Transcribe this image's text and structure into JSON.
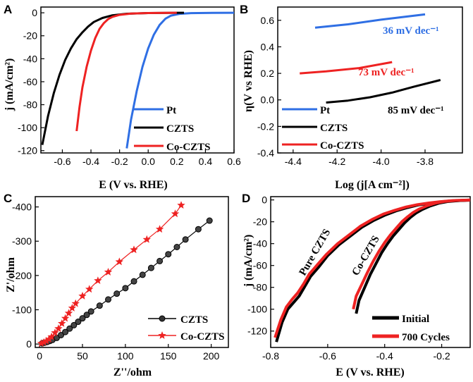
{
  "colors": {
    "blue": "#2f6fe4",
    "black": "#000000",
    "red": "#ee2222"
  },
  "chart_data": [
    {
      "panel": "A",
      "type": "line",
      "xlabel": "E (V vs. RHE)",
      "ylabel": "j (mA/cm²)",
      "xlim": [
        -0.75,
        0.6
      ],
      "ylim": [
        -122,
        5
      ],
      "xticks": [
        -0.6,
        -0.4,
        -0.2,
        0.0,
        0.2,
        0.4,
        0.6
      ],
      "xtick_labels": [
        "-0.6",
        "-0.4",
        "-0.2",
        "0.0",
        "0.2",
        "0.4",
        "0.6"
      ],
      "yticks": [
        0,
        -20,
        -40,
        -60,
        -80,
        -100,
        -120
      ],
      "ytick_labels": [
        "0",
        "-20",
        "-40",
        "-60",
        "-80",
        "-100",
        "-120"
      ],
      "legend": [
        "Pt",
        "CZTS",
        "Co-CZTS"
      ],
      "series": [
        {
          "name": "Pt",
          "color": "blue",
          "x": [
            -0.15,
            -0.12,
            -0.08,
            -0.04,
            0.0,
            0.04,
            0.08,
            0.12,
            0.16,
            0.22,
            0.3,
            0.45,
            0.6
          ],
          "y": [
            -118,
            -93,
            -68,
            -47,
            -31,
            -19,
            -10.5,
            -5.2,
            -2.4,
            -0.9,
            -0.3,
            -0.1,
            0
          ]
        },
        {
          "name": "CZTS",
          "color": "black",
          "x": [
            -0.74,
            -0.7,
            -0.66,
            -0.62,
            -0.58,
            -0.54,
            -0.5,
            -0.46,
            -0.42,
            -0.38,
            -0.32,
            -0.25,
            -0.15,
            0.0,
            0.25
          ],
          "y": [
            -115,
            -90,
            -70,
            -54,
            -41,
            -31,
            -23,
            -17,
            -12,
            -8,
            -4.5,
            -2.2,
            -0.8,
            -0.2,
            0
          ]
        },
        {
          "name": "Co-CZTS",
          "color": "red",
          "x": [
            -0.5,
            -0.48,
            -0.46,
            -0.43,
            -0.4,
            -0.37,
            -0.34,
            -0.31,
            -0.28,
            -0.25,
            -0.2,
            -0.12,
            0.0,
            0.2
          ],
          "y": [
            -103,
            -82,
            -65,
            -47,
            -33,
            -22,
            -14,
            -9,
            -5.5,
            -3.5,
            -1.8,
            -0.7,
            -0.2,
            0
          ]
        }
      ]
    },
    {
      "panel": "B",
      "type": "line",
      "xlabel": "Log (j[A cm⁻²])",
      "ylabel": "η(V vs RHE)",
      "xlim": [
        -4.47,
        -3.63
      ],
      "ylim": [
        -0.4,
        0.7
      ],
      "xticks": [
        -4.4,
        -4.2,
        -4.0,
        -3.8
      ],
      "xtick_labels": [
        "-4.4",
        "-4.2",
        "-4.0",
        "-3.8"
      ],
      "yticks": [
        0.6,
        0.4,
        0.2,
        0.0,
        -0.2,
        -0.4
      ],
      "ytick_labels": [
        "0.6",
        "0.4",
        "0.2",
        "0.0",
        "-0.2",
        "-0.4"
      ],
      "legend": [
        "Pt",
        "CZTS",
        "Co-CZTS"
      ],
      "series": [
        {
          "name": "Pt",
          "color": "blue",
          "x": [
            -4.3,
            -4.15,
            -4.0,
            -3.8
          ],
          "y": [
            0.545,
            0.57,
            0.605,
            0.645
          ]
        },
        {
          "name": "CZTS",
          "color": "black",
          "x": [
            -4.25,
            -4.15,
            -4.05,
            -3.95,
            -3.85,
            -3.73
          ],
          "y": [
            -0.02,
            -0.005,
            0.02,
            0.055,
            0.1,
            0.15
          ]
        },
        {
          "name": "Co-CZTS",
          "color": "red",
          "x": [
            -4.37,
            -4.25,
            -4.1,
            -3.95
          ],
          "y": [
            0.2,
            0.215,
            0.24,
            0.285
          ]
        }
      ],
      "annotations": [
        {
          "text": "36 mV dec⁻¹",
          "color": "blue"
        },
        {
          "text": "73 mV dec⁻¹",
          "color": "red"
        },
        {
          "text": "85 mV dec⁻¹",
          "color": "black"
        }
      ]
    },
    {
      "panel": "C",
      "type": "scatter",
      "xlabel": "Z''/ohm",
      "ylabel": "Z'/ohm",
      "xlim": [
        -5,
        220
      ],
      "ylim": [
        -10,
        430
      ],
      "xticks": [
        0,
        50,
        100,
        150,
        200
      ],
      "xtick_labels": [
        "0",
        "50",
        "100",
        "150",
        "200"
      ],
      "yticks": [
        0,
        100,
        200,
        300,
        400
      ],
      "ytick_labels": [
        "0",
        "-100",
        "-200",
        "-300",
        "-400"
      ],
      "legend": [
        "CZTS",
        "Co-CZTS"
      ],
      "series": [
        {
          "name": "CZTS",
          "color": "black",
          "marker": "circle",
          "x": [
            3,
            6,
            9,
            12,
            15,
            20,
            25,
            30,
            35,
            40,
            45,
            50,
            55,
            60,
            70,
            80,
            90,
            100,
            110,
            120,
            130,
            140,
            150,
            160,
            170,
            185,
            198
          ],
          "y": [
            2,
            4,
            6,
            9,
            12,
            18,
            26,
            35,
            45,
            55,
            65,
            75,
            85,
            95,
            112,
            130,
            147,
            163,
            183,
            202,
            222,
            242,
            262,
            283,
            305,
            335,
            360
          ]
        },
        {
          "name": "Co-CZTS",
          "color": "red",
          "marker": "star",
          "x": [
            2,
            5,
            8,
            11,
            14,
            18,
            22,
            26,
            30,
            34,
            38,
            42,
            50,
            58,
            68,
            80,
            93,
            110,
            125,
            140,
            158,
            165
          ],
          "y": [
            2,
            5,
            9,
            14,
            21,
            33,
            45,
            60,
            75,
            90,
            105,
            118,
            140,
            160,
            185,
            210,
            240,
            275,
            305,
            335,
            380,
            405
          ]
        }
      ]
    },
    {
      "panel": "D",
      "type": "line",
      "xlabel": "E (V vs. RHE)",
      "ylabel": "j (mA/cm²)",
      "xlim": [
        -0.8,
        -0.1
      ],
      "ylim": [
        -135,
        3
      ],
      "xticks": [
        -0.8,
        -0.6,
        -0.4,
        -0.2
      ],
      "xtick_labels": [
        "-0.8",
        "-0.6",
        "-0.4",
        "-0.2"
      ],
      "yticks": [
        0,
        -20,
        -40,
        -60,
        -80,
        -100,
        -120
      ],
      "ytick_labels": [
        "0",
        "-20",
        "-40",
        "-60",
        "-80",
        "-100",
        "-120"
      ],
      "legend": [
        "Initial",
        "700 Cycles"
      ],
      "series": [
        {
          "name": "Pure CZTS Initial",
          "color": "black",
          "x": [
            -0.78,
            -0.76,
            -0.74,
            -0.72,
            -0.7,
            -0.68,
            -0.66,
            -0.63,
            -0.6,
            -0.56,
            -0.52,
            -0.48,
            -0.44,
            -0.4,
            -0.36,
            -0.32,
            -0.28,
            -0.24,
            -0.2,
            -0.16,
            -0.1
          ],
          "y": [
            -130,
            -112,
            -100,
            -94,
            -88,
            -79,
            -70,
            -61,
            -51,
            -41,
            -33,
            -25,
            -19,
            -14,
            -10,
            -7,
            -4.5,
            -3,
            -1.8,
            -0.8,
            -0.2
          ]
        },
        {
          "name": "Pure CZTS 700 Cycles",
          "color": "red",
          "x": [
            -0.785,
            -0.765,
            -0.745,
            -0.725,
            -0.705,
            -0.685,
            -0.665,
            -0.635,
            -0.605,
            -0.565,
            -0.525,
            -0.485,
            -0.445,
            -0.405,
            -0.365,
            -0.325,
            -0.285,
            -0.245,
            -0.205,
            -0.165,
            -0.1
          ],
          "y": [
            -126,
            -110,
            -98,
            -91,
            -85,
            -77,
            -68,
            -59,
            -50,
            -40,
            -32,
            -24,
            -18,
            -13,
            -9.5,
            -6.5,
            -4.3,
            -2.8,
            -1.6,
            -0.7,
            -0.2
          ]
        },
        {
          "name": "Co-CZTS Initial",
          "color": "black",
          "x": [
            -0.5,
            -0.49,
            -0.47,
            -0.45,
            -0.43,
            -0.41,
            -0.39,
            -0.37,
            -0.35,
            -0.33,
            -0.31,
            -0.29,
            -0.27,
            -0.24,
            -0.21,
            -0.18,
            -0.14,
            -0.1
          ],
          "y": [
            -104,
            -92,
            -80,
            -68,
            -58,
            -48,
            -40,
            -33,
            -27,
            -21,
            -16,
            -12,
            -9,
            -5.5,
            -3,
            -1.5,
            -0.6,
            -0.1
          ]
        },
        {
          "name": "Co-CZTS 700 Cycles",
          "color": "red",
          "x": [
            -0.51,
            -0.5,
            -0.48,
            -0.46,
            -0.44,
            -0.42,
            -0.4,
            -0.38,
            -0.36,
            -0.34,
            -0.32,
            -0.3,
            -0.28,
            -0.25,
            -0.22,
            -0.19,
            -0.15,
            -0.1
          ],
          "y": [
            -100,
            -88,
            -77,
            -66,
            -56,
            -47,
            -39,
            -32,
            -26,
            -20,
            -15.5,
            -11.5,
            -8.5,
            -5.2,
            -2.8,
            -1.4,
            -0.5,
            -0.1
          ]
        }
      ],
      "annotations": [
        {
          "text": "Pure CZTS",
          "color": "black"
        },
        {
          "text": "Co-CZTS",
          "color": "black"
        }
      ]
    }
  ],
  "panel_letters": [
    "A",
    "B",
    "C",
    "D"
  ]
}
